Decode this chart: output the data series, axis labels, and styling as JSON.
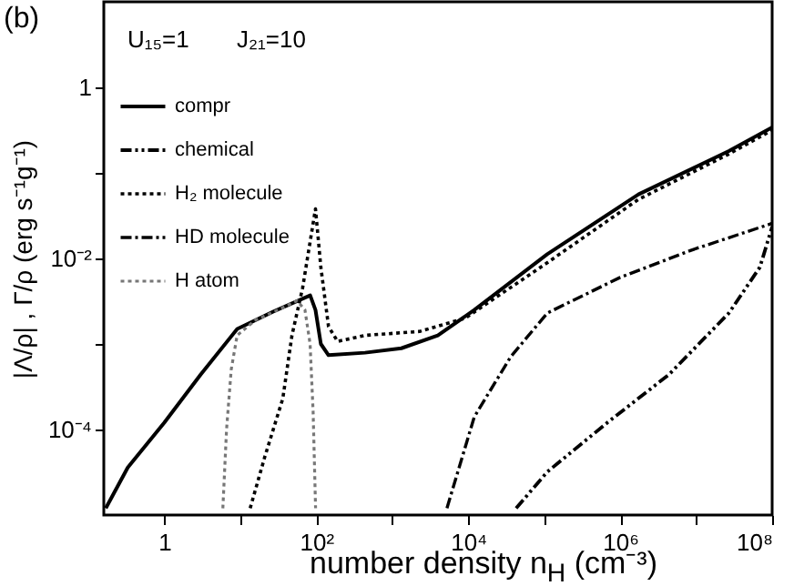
{
  "chart_data": {
    "type": "line",
    "title": "(b)",
    "xlabel": "number density  n$_{H}$ (cm⁻³)",
    "ylabel": "|Λ/ρ| , Γ/ρ (erg s⁻¹g⁻¹)",
    "annotations": [
      "U₁₅=1",
      "J₂₁=10"
    ],
    "log": "xy",
    "legend": "top left",
    "grid": false,
    "xlim": [
      0.16,
      100000000
    ],
    "ylim": [
      1e-05,
      10
    ],
    "xticks": [
      {
        "value": 1,
        "label": "1"
      },
      {
        "value": 10,
        "label": null
      },
      {
        "value": 100,
        "label": "10²"
      },
      {
        "value": 1000,
        "label": null
      },
      {
        "value": 10000,
        "label": "10⁴"
      },
      {
        "value": 100000,
        "label": null
      },
      {
        "value": 1000000,
        "label": "10⁶"
      },
      {
        "value": 10000000,
        "label": null
      },
      {
        "value": 100000000,
        "label": "10⁸"
      }
    ],
    "yticks": [
      {
        "value": 0.0001,
        "label": "10⁻⁴"
      },
      {
        "value": 0.001,
        "label": null
      },
      {
        "value": 0.01,
        "label": "10⁻²"
      },
      {
        "value": 0.1,
        "label": null
      },
      {
        "value": 1,
        "label": "1"
      }
    ],
    "series": [
      {
        "name": "compr",
        "color": "#000000",
        "line_style": "solid",
        "x": [
          0.17,
          0.331,
          1,
          3.02,
          9.12,
          27.5,
          83.2,
          97.7,
          115,
          145,
          437,
          1318,
          3981,
          12020,
          109600,
          1740000,
          26900000,
          100000000
        ],
        "values": [
          1.2e-05,
          3.6e-05,
          0.00012,
          0.00044,
          0.0015,
          0.0024,
          0.0037,
          0.0025,
          0.001,
          0.00074,
          0.00079,
          0.00089,
          0.00126,
          0.0025,
          0.0112,
          0.056,
          0.18,
          0.34
        ]
      },
      {
        "name": "chemical",
        "color": "#000000",
        "line_style": "dashdotdot",
        "x": [
          42700,
          110000,
          676000,
          4400000,
          27000000,
          69000000,
          100000000
        ],
        "values": [
          1.2e-05,
          3.2e-05,
          0.00012,
          0.00044,
          0.0023,
          0.0079,
          0.0234
        ]
      },
      {
        "name": "H₂ molecule",
        "color": "#000000",
        "line_style": "dotted",
        "x": [
          13.5,
          20.9,
          36.3,
          47.9,
          66.1,
          83.2,
          97.7,
          115,
          145,
          191,
          437,
          2291,
          9120,
          109600,
          1740000,
          26900000,
          100000000
        ],
        "values": [
          1.2e-05,
          4.7e-05,
          0.00023,
          0.00126,
          0.0045,
          0.0158,
          0.038,
          0.0079,
          0.0016,
          0.00107,
          0.00126,
          0.0014,
          0.002,
          0.0089,
          0.049,
          0.166,
          0.316
        ]
      },
      {
        "name": "HD molecule",
        "color": "#000000",
        "line_style": "dashdot",
        "x": [
          5250,
          12000,
          36300,
          110000,
          1000000,
          8900000,
          100000000
        ],
        "values": [
          1.2e-05,
          0.00014,
          0.00071,
          0.0023,
          0.006,
          0.0126,
          0.0257
        ]
      },
      {
        "name": "H atom",
        "color": "#777777",
        "line_style": "dotted",
        "x": [
          5.9,
          6.6,
          7.6,
          9.1,
          15.8,
          31.6,
          56,
          71,
          83,
          91,
          98
        ],
        "values": [
          1.2e-05,
          0.0001,
          0.0005,
          0.00126,
          0.0019,
          0.0025,
          0.0032,
          0.0025,
          0.001,
          0.00016,
          1.2e-05
        ]
      }
    ]
  }
}
